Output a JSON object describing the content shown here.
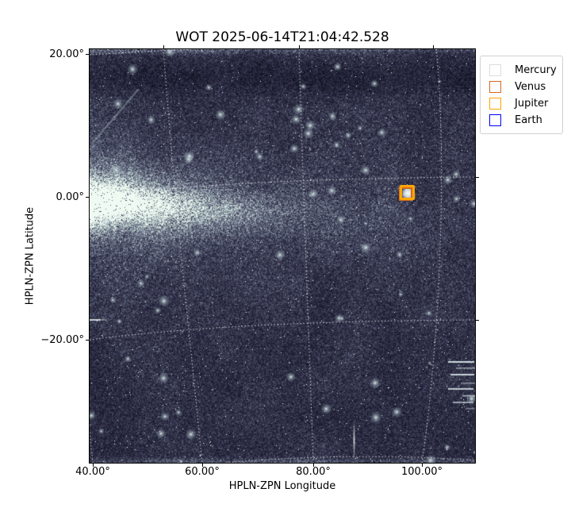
{
  "title": "WOT 2025-06-14T21:04:42.528",
  "axes": {
    "x": {
      "label": "HPLN-ZPN Longitude",
      "ticks": [
        "40.00°",
        "60.00°",
        "80.00°",
        "100.00°"
      ]
    },
    "y": {
      "label": "HPLN-ZPN Latitude",
      "ticks": [
        "20.00°",
        "0.00°",
        "−20.00°"
      ]
    }
  },
  "legend": {
    "items": [
      {
        "label": "Mercury",
        "color": "#dcdcdc"
      },
      {
        "label": "Venus",
        "color": "#d2691e"
      },
      {
        "label": "Jupiter",
        "color": "#ffa500"
      },
      {
        "label": "Earth",
        "color": "#0000ff"
      }
    ]
  },
  "chart_data": {
    "type": "heatmap",
    "title": "WOT 2025-06-14T21:04:42.528",
    "xlabel": "HPLN-ZPN Longitude",
    "ylabel": "HPLN-ZPN Latitude",
    "xlim": [
      39.5,
      109.5
    ],
    "ylim": [
      -37,
      20.7
    ],
    "x_ticks_deg": [
      40,
      60,
      80,
      100
    ],
    "y_ticks_deg": [
      20,
      0,
      -20
    ],
    "grid": "white dotted curved graticule (ZPN projection), lines at 20° spacing",
    "legend_position": "upper right, outside axes",
    "legend_entries": [
      "Mercury",
      "Venus",
      "Jupiter",
      "Earth"
    ],
    "image_description": "dark blue-purple speckled starfield; bright pale zodiacal-light band entering from left edge near 0° latitude fading by ~60° longitude; darker band along top; pale artifact rows at top and bottom edges; bright vertical streak near 94° longitude at bottom; short bright horizontal streaks near right edge below -20° latitude",
    "markers": [
      {
        "name": "Venus",
        "approx_lon_deg": 97.3,
        "approx_lat_deg": -1.9,
        "color": "#d2691e",
        "shape": "square-outline"
      },
      {
        "name": "Jupiter",
        "approx_lon_deg": 97.3,
        "approx_lat_deg": -1.9,
        "color": "#ffa500",
        "shape": "square-outline"
      }
    ]
  }
}
